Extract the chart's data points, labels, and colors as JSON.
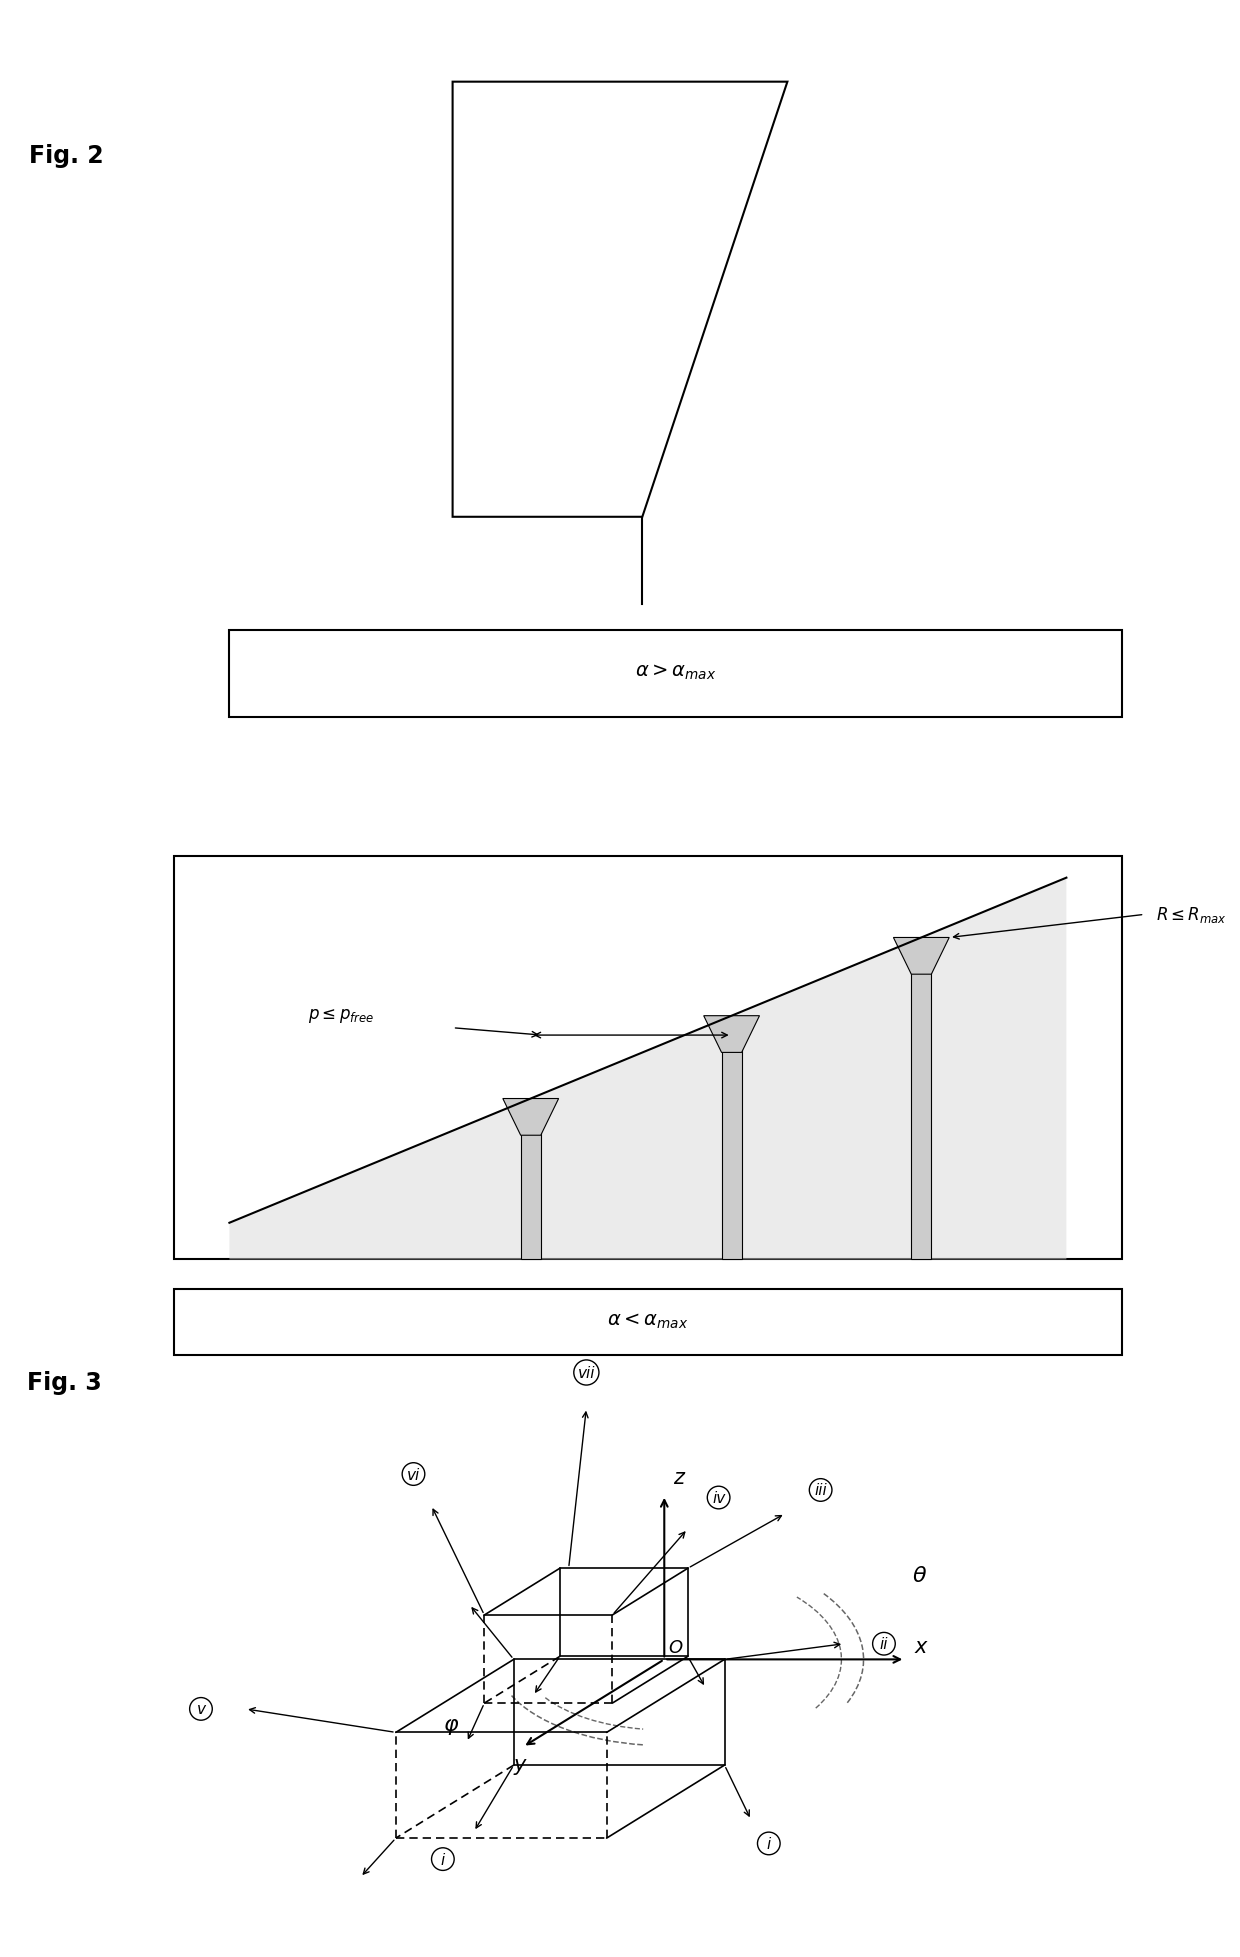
{
  "bg_color": "#ffffff",
  "line_color": "#000000",
  "gray_color": "#bbbbbb",
  "dashed_color": "#666666",
  "fig2_label": "Fig. 2",
  "fig3_label": "Fig. 3",
  "alpha_gt": "$\\alpha > \\alpha_{max}$",
  "alpha_lt": "$\\alpha < \\alpha_{max}$",
  "p_label": "$p \\leq p_{free}$",
  "R_label": "$R \\leq R_{max}$"
}
